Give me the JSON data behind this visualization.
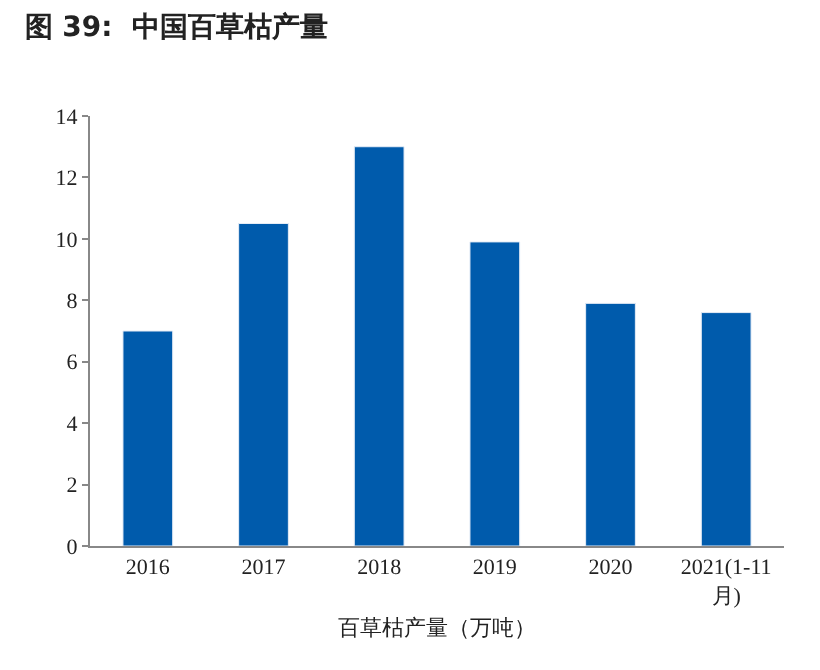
{
  "chart_data": {
    "type": "bar",
    "title": "图 39:  中国百草枯产量",
    "xlabel": "百草枯产量（万吨）",
    "categories": [
      "2016",
      "2017",
      "2018",
      "2019",
      "2020",
      "2021(1-11月)"
    ],
    "values": [
      7.0,
      10.5,
      13.0,
      9.9,
      7.9,
      7.6
    ],
    "color": "#005bac",
    "ylim": [
      0,
      14
    ],
    "yticks": [
      0,
      2,
      4,
      6,
      8,
      10,
      12,
      14
    ],
    "grid": false,
    "legend": false
  }
}
